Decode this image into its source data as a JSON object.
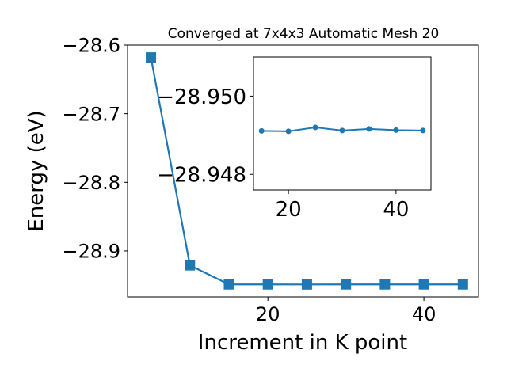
{
  "chart_data": [
    {
      "type": "line",
      "title": "Converged at 7x4x3 Automatic Mesh 20",
      "xlabel": "Increment in K point",
      "ylabel": "Energy (eV)",
      "xlim": [
        2.0,
        47.0
      ],
      "ylim": [
        -28.967,
        -28.6
      ],
      "xticks": [
        20,
        40
      ],
      "xtick_labels": [
        "20",
        "40"
      ],
      "yticks": [
        -28.6,
        -28.7,
        -28.8,
        -28.9
      ],
      "ytick_labels": [
        "−28.6",
        "−28.7",
        "−28.8",
        "−28.9"
      ],
      "grid": false,
      "marker": "square",
      "color": "#1f77b4",
      "series": [
        {
          "x": [
            5,
            10,
            15,
            20,
            25,
            30,
            35,
            40,
            45
          ],
          "y": [
            -28.618,
            -28.921,
            -28.9488,
            -28.9488,
            -28.9489,
            -28.9488,
            -28.9488,
            -28.9488,
            -28.9488
          ]
        }
      ]
    },
    {
      "type": "line",
      "title": "",
      "xlabel": "",
      "ylabel": "",
      "xlim": [
        13.5,
        46.5
      ],
      "ylim": [
        -28.9476,
        -28.951
      ],
      "xticks": [
        20,
        40
      ],
      "xtick_labels": [
        "20",
        "40"
      ],
      "yticks": [
        -28.95,
        -28.948
      ],
      "ytick_labels": [
        "−28.950",
        "−28.948"
      ],
      "grid": false,
      "marker": "circle",
      "color": "#1f77b4",
      "series": [
        {
          "x": [
            15,
            20,
            25,
            30,
            35,
            40,
            45
          ],
          "y": [
            -28.94911,
            -28.9491,
            -28.9492,
            -28.94912,
            -28.94916,
            -28.94913,
            -28.94912
          ]
        }
      ]
    }
  ]
}
